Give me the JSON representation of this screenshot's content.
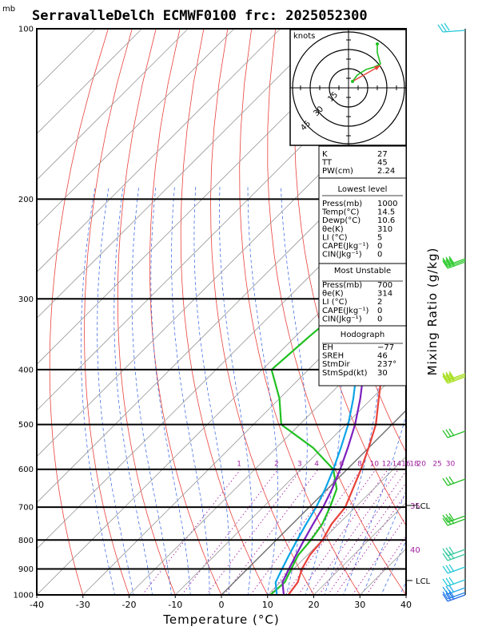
{
  "title": "SerravalleDelCh ECMWF0100 frc: 2025052300",
  "pressure_unit": "mb",
  "xlabel": "Temperature (°C)",
  "right_label": "Mixing Ratio (g/kg)",
  "hodograph": {
    "unit": "knots",
    "ring_labels": [
      "15",
      "30",
      "45"
    ]
  },
  "lcl_label": "LCL",
  "indices": {
    "basic": [
      [
        "K",
        "27"
      ],
      [
        "TT",
        "45"
      ],
      [
        "PW(cm)",
        "2.24"
      ]
    ],
    "lowest_title": "Lowest level",
    "lowest": [
      [
        "Press(mb)",
        "1000"
      ],
      [
        "Temp(°C)",
        "14.5"
      ],
      [
        "Dewp(°C)",
        "10.6"
      ],
      [
        "θe(K)",
        "310"
      ],
      [
        "LI (°C)",
        "5"
      ],
      [
        "CAPE(Jkg⁻¹)",
        "0"
      ],
      [
        "CIN(Jkg⁻¹)",
        "0"
      ]
    ],
    "unstable_title": "Most Unstable",
    "unstable": [
      [
        "Press(mb)",
        "700"
      ],
      [
        "θe(K)",
        "314"
      ],
      [
        "LI (°C)",
        "2"
      ],
      [
        "CAPE(Jkg⁻¹)",
        "0"
      ],
      [
        "CIN(Jkg⁻¹)",
        "0"
      ]
    ],
    "hodo_title": "Hodograph",
    "hodo": [
      [
        "EH",
        "−77"
      ],
      [
        "SREH",
        "46"
      ],
      [
        "StmDir",
        "237°"
      ],
      [
        "StmSpd(kt)",
        "30"
      ]
    ]
  },
  "chart_data": {
    "type": "line",
    "title": "SerravalleDelCh ECMWF0100 frc: 2025052300",
    "xlabel": "Temperature (°C)",
    "ylabel": "mb",
    "x_ticks": [
      -40,
      -30,
      -20,
      -10,
      0,
      10,
      20,
      30,
      40
    ],
    "pressure_ticks": [
      100,
      200,
      300,
      400,
      500,
      600,
      700,
      800,
      900,
      1000
    ],
    "mixing_ratio_labels": [
      "1",
      "2",
      "3",
      "4",
      "6",
      "8",
      "10",
      "12",
      "14",
      "16",
      "18",
      "20",
      "25",
      "30"
    ],
    "right_side_labels": [
      "35",
      "40"
    ],
    "xlim": [
      -40,
      40
    ],
    "ylim": [
      1000,
      100
    ],
    "series": [
      {
        "color": "#e8413a",
        "points": [
          [
            14.5,
            1000
          ],
          [
            13.8,
            950
          ],
          [
            11.8,
            900
          ],
          [
            10.5,
            850
          ],
          [
            10.0,
            800
          ],
          [
            8.5,
            750
          ],
          [
            7.8,
            700
          ],
          [
            5.5,
            650
          ],
          [
            3.0,
            600
          ],
          [
            0.0,
            550
          ],
          [
            -3.5,
            500
          ],
          [
            -8.5,
            450
          ],
          [
            -14.0,
            400
          ],
          [
            -20.5,
            350
          ],
          [
            -27.0,
            300
          ],
          [
            -35.0,
            250
          ],
          [
            -28.0,
            200
          ],
          [
            -17.0,
            150
          ],
          [
            -4.0,
            110
          ],
          [
            -1.0,
            100
          ]
        ]
      },
      {
        "color": "#22c022",
        "points": [
          [
            10.6,
            1000
          ],
          [
            11.0,
            950
          ],
          [
            9.5,
            900
          ],
          [
            8.0,
            850
          ],
          [
            7.5,
            800
          ],
          [
            6.5,
            750
          ],
          [
            4.5,
            700
          ],
          [
            2.0,
            650
          ],
          [
            -3.0,
            600
          ],
          [
            -12.0,
            550
          ],
          [
            -24.0,
            500
          ],
          [
            -30.0,
            450
          ],
          [
            -38.0,
            400
          ],
          [
            -37.0,
            350
          ],
          [
            -35.5,
            300
          ],
          [
            -35.0,
            250
          ],
          [
            -33.5,
            200
          ],
          [
            -32.5,
            150
          ],
          [
            -31.0,
            110
          ],
          [
            -30.5,
            100
          ]
        ]
      },
      {
        "color": "#0aa5e8",
        "points": [
          [
            12.0,
            1000
          ],
          [
            9.0,
            950
          ],
          [
            7.5,
            900
          ],
          [
            6.0,
            850
          ],
          [
            4.5,
            800
          ],
          [
            3.0,
            750
          ],
          [
            1.5,
            700
          ],
          [
            -0.5,
            650
          ],
          [
            -3.0,
            600
          ],
          [
            -6.0,
            550
          ],
          [
            -9.5,
            500
          ],
          [
            -14.0,
            450
          ],
          [
            -19.5,
            400
          ],
          [
            -26.0,
            350
          ],
          [
            -34.0,
            300
          ],
          [
            -43.0,
            250
          ],
          [
            -52.0,
            200
          ],
          [
            -62.0,
            150
          ],
          [
            -72.0,
            110
          ],
          [
            -75.0,
            100
          ]
        ]
      },
      {
        "color": "#7c1fbf",
        "points": [
          [
            13.5,
            1000
          ],
          [
            10.5,
            950
          ],
          [
            9.0,
            900
          ],
          [
            7.5,
            850
          ],
          [
            6.0,
            800
          ],
          [
            4.5,
            750
          ],
          [
            3.0,
            700
          ],
          [
            1.0,
            650
          ],
          [
            -1.5,
            600
          ],
          [
            -4.5,
            550
          ],
          [
            -8.0,
            500
          ],
          [
            -12.5,
            450
          ],
          [
            -18.0,
            400
          ],
          [
            -24.0,
            350
          ],
          [
            -31.0,
            300
          ],
          [
            -40.0,
            250
          ],
          [
            -49.0,
            200
          ],
          [
            -59.0,
            150
          ],
          [
            -68.5,
            110
          ],
          [
            -71.5,
            100
          ]
        ]
      }
    ],
    "wind_barbs_count": 18
  }
}
